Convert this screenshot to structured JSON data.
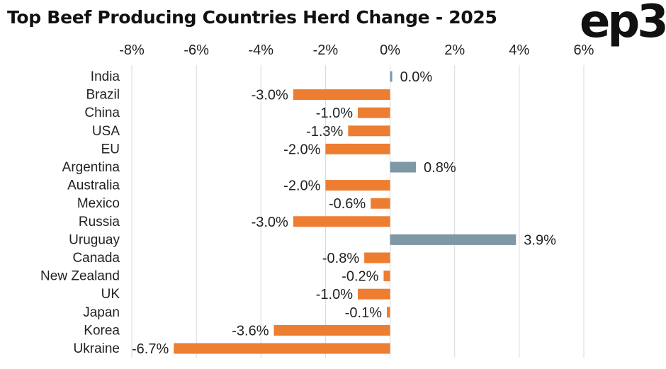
{
  "chart_data": {
    "type": "bar",
    "orientation": "horizontal",
    "title": "Top Beef Producing Countries Herd Change - 2025",
    "categories": [
      "India",
      "Brazil",
      "China",
      "USA",
      "EU",
      "Argentina",
      "Australia",
      "Mexico",
      "Russia",
      "Uruguay",
      "Canada",
      "New Zealand",
      "UK",
      "Japan",
      "Korea",
      "Ukraine"
    ],
    "values": [
      0.0,
      -3.0,
      -1.0,
      -1.3,
      -2.0,
      0.8,
      -2.0,
      -0.6,
      -3.0,
      3.9,
      -0.8,
      -0.2,
      -1.0,
      -0.1,
      -3.6,
      -6.7
    ],
    "value_labels": [
      "0.0%",
      "-3.0%",
      "-1.0%",
      "-1.3%",
      "-2.0%",
      "0.8%",
      "-2.0%",
      "-0.6%",
      "-3.0%",
      "3.9%",
      "-0.8%",
      "-0.2%",
      "-1.0%",
      "-0.1%",
      "-3.6%",
      "-6.7%"
    ],
    "xlim": [
      -8,
      6
    ],
    "xticks": [
      -8,
      -6,
      -4,
      -2,
      0,
      2,
      4,
      6
    ],
    "xtick_labels": [
      "-8%",
      "-6%",
      "-4%",
      "-2%",
      "0%",
      "2%",
      "4%",
      "6%"
    ],
    "axis_position": "top",
    "grid": true,
    "colors": {
      "negative": "#ED7D31",
      "positive": "#7F98A6",
      "grid": "#D9D9D9"
    }
  },
  "logo_text": "ep3"
}
